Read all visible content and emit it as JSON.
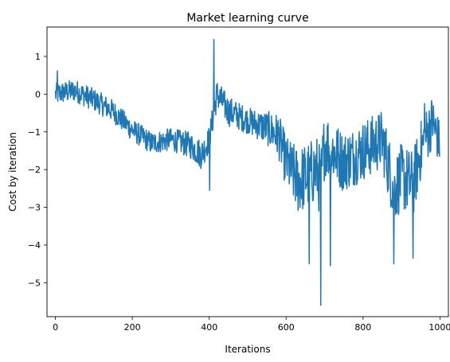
{
  "chart_data": {
    "type": "line",
    "title": "Market learning curve",
    "xlabel": "Iterations",
    "ylabel": "Cost by iteration",
    "xlim": [
      -22,
      1022
    ],
    "ylim": [
      -5.9,
      1.78
    ],
    "x_ticks": [
      0,
      200,
      400,
      600,
      800,
      1000
    ],
    "x_tick_labels": [
      "0",
      "200",
      "400",
      "600",
      "800",
      "1000"
    ],
    "y_ticks": [
      -5,
      -4,
      -3,
      -2,
      -1,
      0,
      1
    ],
    "y_tick_labels": [
      "−5",
      "−4",
      "−3",
      "−2",
      "−1",
      "0",
      "1"
    ],
    "grid": false,
    "legend": "none",
    "series": [
      {
        "color": "#1f77b4",
        "n_points": 1000,
        "x_start": 0,
        "x_step": 1,
        "trend_x": [
          0,
          50,
          100,
          150,
          200,
          250,
          300,
          350,
          380,
          400,
          420,
          450,
          500,
          550,
          580,
          600,
          630,
          650,
          680,
          690,
          700,
          750,
          800,
          850,
          880,
          900,
          930,
          950,
          980,
          999
        ],
        "trend_y": [
          0.0,
          0.1,
          -0.15,
          -0.45,
          -0.95,
          -1.3,
          -1.2,
          -1.35,
          -1.6,
          -1.2,
          0.0,
          -0.45,
          -0.7,
          -0.9,
          -1.1,
          -1.8,
          -2.3,
          -2.2,
          -2.0,
          -2.4,
          -1.3,
          -1.8,
          -1.5,
          -1.2,
          -2.5,
          -2.2,
          -2.4,
          -1.5,
          -0.7,
          -1.3
        ],
        "spread": [
          0.3,
          0.3,
          0.3,
          0.3,
          0.3,
          0.3,
          0.3,
          0.35,
          0.4,
          0.35,
          0.4,
          0.4,
          0.35,
          0.45,
          0.6,
          0.7,
          0.9,
          0.9,
          0.9,
          1.0,
          0.9,
          0.8,
          0.8,
          0.8,
          0.9,
          0.9,
          0.9,
          0.8,
          0.7,
          0.6
        ],
        "peaks": [
          {
            "x": 412,
            "y": 1.45
          },
          {
            "x": 401,
            "y": -2.55
          },
          {
            "x": 690,
            "y": -5.6
          },
          {
            "x": 715,
            "y": -4.55
          },
          {
            "x": 660,
            "y": -4.5
          },
          {
            "x": 880,
            "y": -4.5
          },
          {
            "x": 930,
            "y": -4.35
          },
          {
            "x": 5,
            "y": 0.62
          },
          {
            "x": 960,
            "y": -0.25
          }
        ]
      }
    ]
  }
}
